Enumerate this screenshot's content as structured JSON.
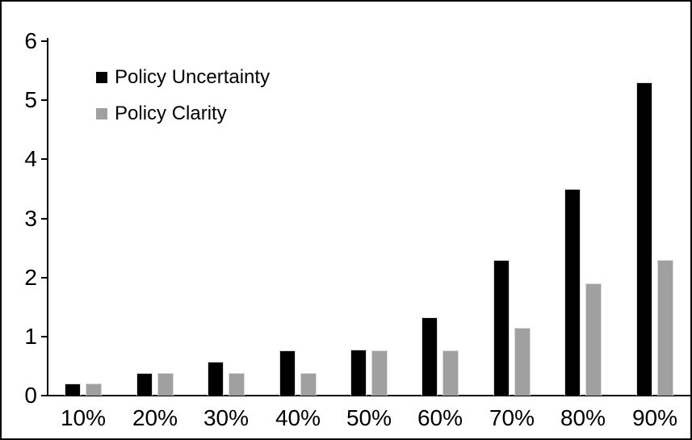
{
  "window": {
    "background": "#ffffff",
    "frame_border_color": "#000000",
    "axis_color": "#000000",
    "bar_outline_color": "#d9d9d9"
  },
  "chart_data": {
    "type": "bar",
    "title": "",
    "xlabel": "",
    "ylabel": "",
    "categories": [
      "10%",
      "20%",
      "30%",
      "40%",
      "50%",
      "60%",
      "70%",
      "80%",
      "90%"
    ],
    "series": [
      {
        "name": "Policy Uncertainty",
        "color": "#000000",
        "values": [
          0.2,
          0.38,
          0.57,
          0.76,
          0.78,
          1.33,
          2.3,
          3.5,
          5.3
        ]
      },
      {
        "name": "Policy Clarity",
        "color": "#a0a0a0",
        "values": [
          0.2,
          0.38,
          0.38,
          0.38,
          0.77,
          0.77,
          1.15,
          1.9,
          2.3
        ]
      }
    ],
    "ylim": [
      0,
      6
    ],
    "yticks": [
      0,
      1,
      2,
      3,
      4,
      5,
      6
    ],
    "grid": false,
    "legend_position": "top-left-inside"
  }
}
